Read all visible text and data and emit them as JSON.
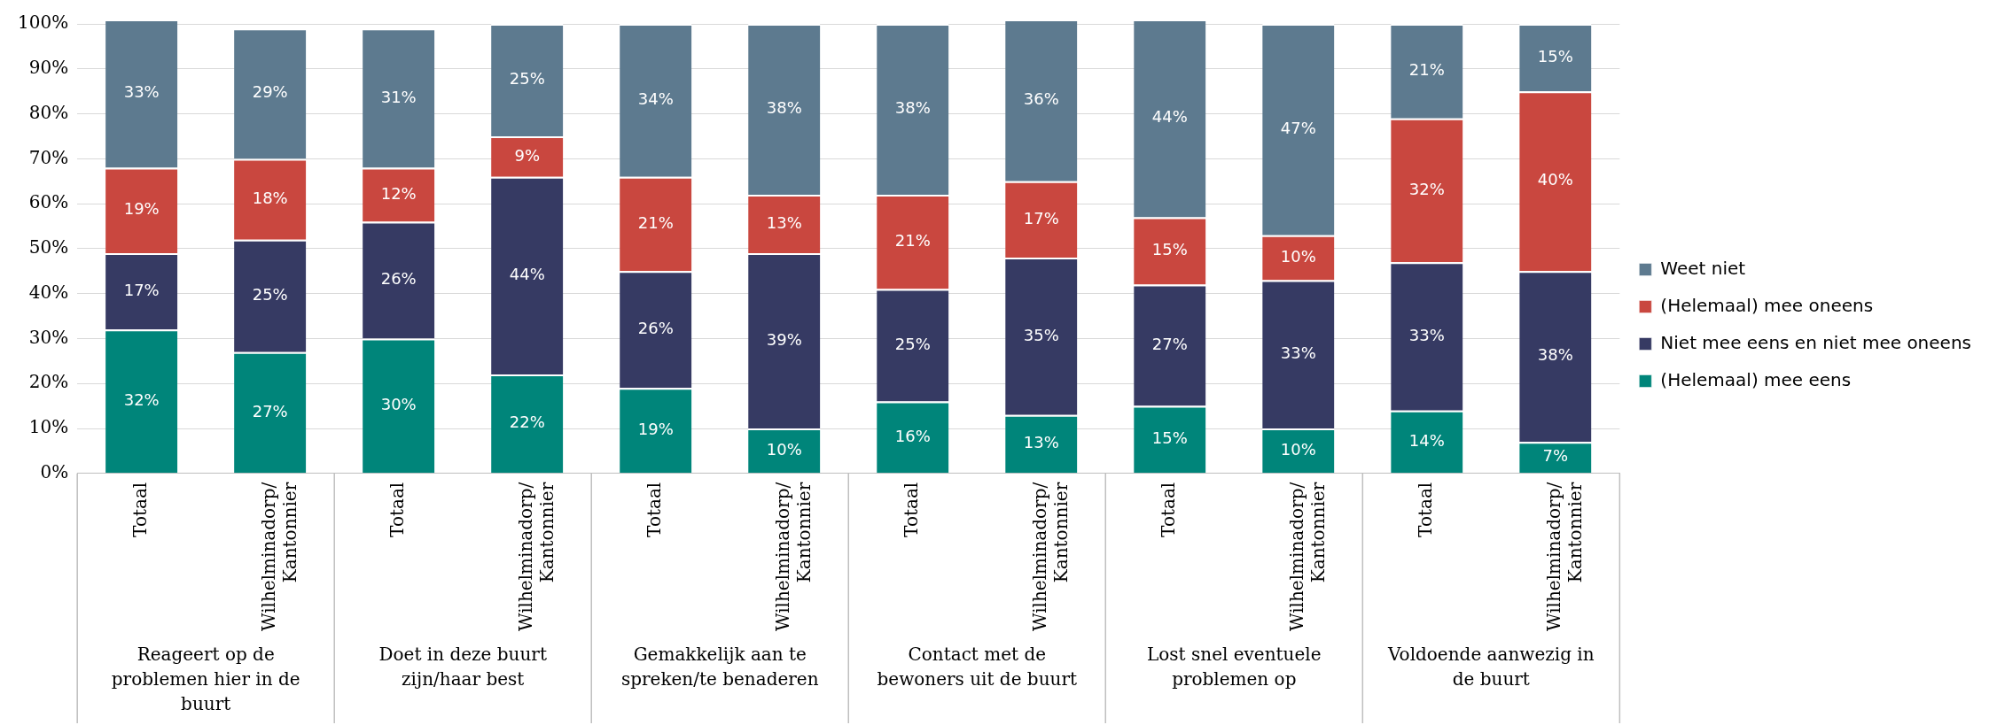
{
  "chart_data": {
    "type": "bar",
    "stacked": true,
    "grid": "y",
    "legend": "right",
    "categories": [
      "Totaal",
      "Wilhelminadorp/ Kantonnier",
      "Totaal",
      "Wilhelminadorp/ Kantonnier",
      "Totaal",
      "Wilhelminadorp/ Kantonnier",
      "Totaal",
      "Wilhelminadorp/ Kantonnier",
      "Totaal",
      "Wilhelminadorp/ Kantonnier",
      "Totaal",
      "Wilhelminadorp/ Kantonnier"
    ],
    "annotations": [
      "Reageert op de problemen hier in de buurt",
      "Doet in deze buurt zijn/haar best",
      "Gemakkelijk aan te spreken/te benaderen",
      "Contact met de bewoners uit de buurt",
      "Lost snel eventuele problemen op",
      "Voldoende aanwezig in de buurt"
    ],
    "ylim": [
      0,
      101
    ],
    "yticks": [
      {
        "value": 0,
        "label": "0%"
      },
      {
        "value": 10,
        "label": "10%"
      },
      {
        "value": 20,
        "label": "20%"
      },
      {
        "value": 30,
        "label": "30%"
      },
      {
        "value": 40,
        "label": "40%"
      },
      {
        "value": 50,
        "label": "50%"
      },
      {
        "value": 60,
        "label": "60%"
      },
      {
        "value": 70,
        "label": "70%"
      },
      {
        "value": 80,
        "label": "80%"
      },
      {
        "value": 90,
        "label": "90%"
      },
      {
        "value": 100,
        "label": "100%"
      }
    ],
    "series": [
      {
        "name": "(Helemaal) mee eens",
        "color": "#00857a",
        "values": [
          32,
          27,
          30,
          22,
          19,
          10,
          16,
          13,
          15,
          10,
          14,
          7
        ],
        "value_labels": [
          "32%",
          "27%",
          "30%",
          "22%",
          "19%",
          "10%",
          "16%",
          "13%",
          "15%",
          "10%",
          "14%",
          "7%"
        ]
      },
      {
        "name": "Niet mee eens en niet mee oneens",
        "color": "#363a63",
        "values": [
          17,
          25,
          26,
          44,
          26,
          39,
          25,
          35,
          27,
          33,
          33,
          38
        ],
        "value_labels": [
          "17%",
          "25%",
          "26%",
          "44%",
          "26%",
          "39%",
          "25%",
          "35%",
          "27%",
          "33%",
          "33%",
          "38%"
        ]
      },
      {
        "name": "(Helemaal) mee oneens",
        "color": "#c9473f",
        "values": [
          19,
          18,
          12,
          9,
          21,
          13,
          21,
          17,
          15,
          10,
          32,
          40
        ],
        "value_labels": [
          "19%",
          "18%",
          "12%",
          "9%",
          "21%",
          "13%",
          "21%",
          "17%",
          "15%",
          "10%",
          "32%",
          "40%"
        ]
      },
      {
        "name": "Weet niet",
        "color": "#5d7a8f",
        "values": [
          33,
          29,
          31,
          25,
          34,
          38,
          38,
          36,
          44,
          47,
          21,
          15
        ],
        "value_labels": [
          "33%",
          "29%",
          "31%",
          "25%",
          "34%",
          "38%",
          "38%",
          "36%",
          "44%",
          "47%",
          "21%",
          "15%"
        ]
      }
    ]
  }
}
